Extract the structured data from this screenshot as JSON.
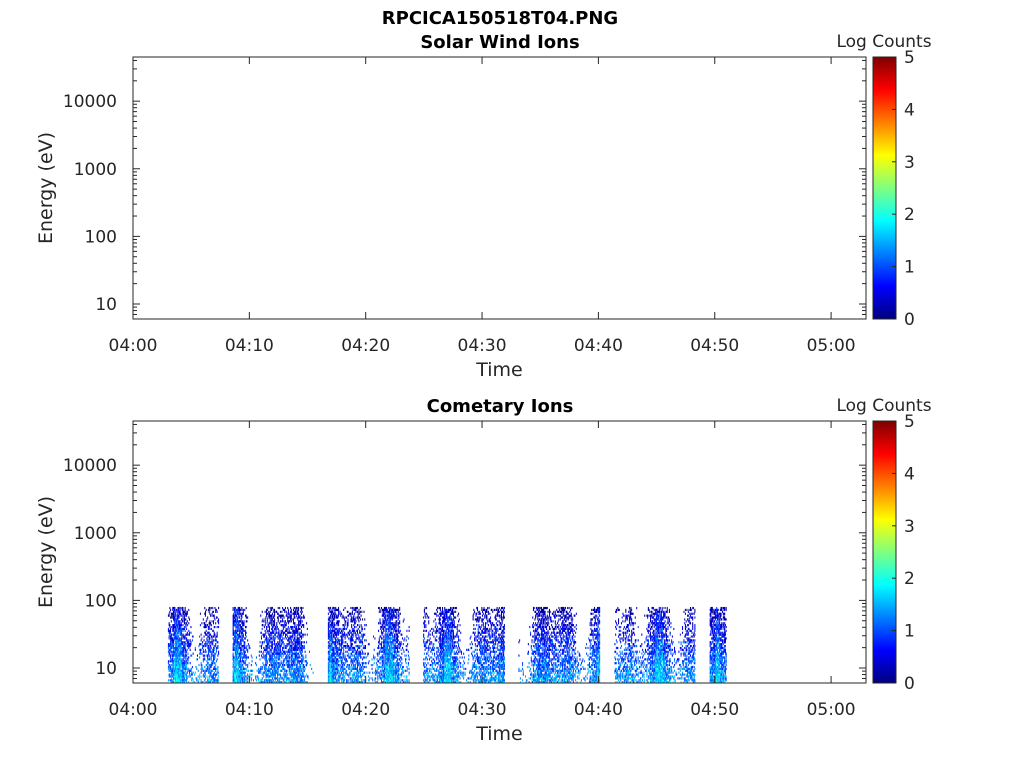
{
  "figure_title": "RPCICA150518T04.PNG",
  "colormap_stops": [
    "#00007f",
    "#0000ff",
    "#007fff",
    "#00ffff",
    "#7fff7f",
    "#ffff00",
    "#ff7f00",
    "#ff0000",
    "#7f0000"
  ],
  "chart_data": [
    {
      "type": "heatmap",
      "title": "Solar Wind Ions",
      "xlabel": "Time",
      "ylabel": "Energy (eV)",
      "x_range": [
        "04:00",
        "05:03"
      ],
      "x_ticks": [
        "04:00",
        "04:10",
        "04:20",
        "04:30",
        "04:40",
        "04:50",
        "05:00"
      ],
      "y_scale": "log",
      "y_range": [
        6,
        45000
      ],
      "y_ticks": [
        "10",
        "100",
        "1000",
        "10000"
      ],
      "colorbar": {
        "label": "Log Counts",
        "range": [
          0,
          5
        ],
        "ticks": [
          "0",
          "1",
          "2",
          "3",
          "4",
          "5"
        ]
      },
      "data_coverage": "none"
    },
    {
      "type": "heatmap",
      "title": "Cometary Ions",
      "xlabel": "Time",
      "ylabel": "Energy (eV)",
      "x_range": [
        "04:00",
        "05:03"
      ],
      "x_ticks": [
        "04:00",
        "04:10",
        "04:20",
        "04:30",
        "04:40",
        "04:50",
        "05:00"
      ],
      "y_scale": "log",
      "y_range": [
        6,
        45000
      ],
      "y_ticks": [
        "10",
        "100",
        "1000",
        "10000"
      ],
      "colorbar": {
        "label": "Log Counts",
        "range": [
          0,
          5
        ],
        "ticks": [
          "0",
          "1",
          "2",
          "3",
          "4",
          "5"
        ]
      },
      "data_coverage": {
        "time_start": "04:03",
        "time_end": "04:51",
        "energy_min_eV": 6,
        "energy_max_eV": 80,
        "typical_log_counts": [
          0,
          2
        ]
      }
    }
  ]
}
